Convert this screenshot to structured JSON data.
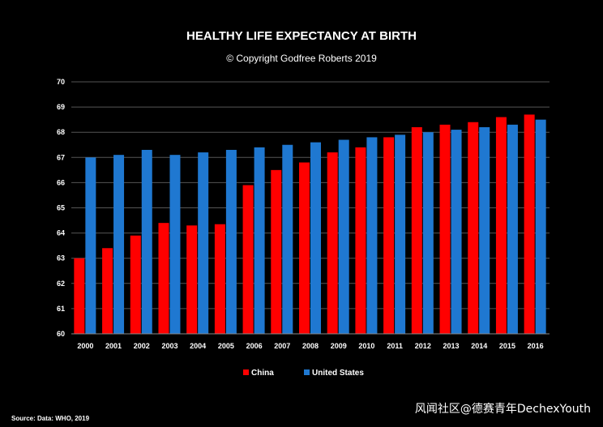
{
  "chart_data": {
    "type": "bar",
    "title": "HEALTHY LIFE EXPECTANCY AT BIRTH",
    "subtitle": "© Copyright Godfree Roberts 2019",
    "categories": [
      "2000",
      "2001",
      "2002",
      "2003",
      "2004",
      "2005",
      "2006",
      "2007",
      "2008",
      "2009",
      "2010",
      "2011",
      "2012",
      "2013",
      "2014",
      "2015",
      "2016"
    ],
    "series": [
      {
        "name": "China",
        "color": "#ff0000",
        "values": [
          63.0,
          63.4,
          63.9,
          64.4,
          64.3,
          64.35,
          65.9,
          66.5,
          66.8,
          67.2,
          67.4,
          67.8,
          68.2,
          68.3,
          68.4,
          68.6,
          68.7
        ]
      },
      {
        "name": "United States",
        "color": "#1f78d1",
        "values": [
          67.0,
          67.1,
          67.3,
          67.1,
          67.2,
          67.3,
          67.4,
          67.5,
          67.6,
          67.7,
          67.8,
          67.9,
          68.0,
          68.1,
          68.2,
          68.3,
          68.5
        ]
      }
    ],
    "ylim": [
      60,
      70
    ],
    "yticks": [
      60,
      61,
      62,
      63,
      64,
      65,
      66,
      67,
      68,
      69,
      70
    ],
    "xlabel": "",
    "ylabel": "",
    "grid": true,
    "legend_position": "bottom-center",
    "source": "Source: Data: WHO, 2019"
  },
  "watermark": "风闻社区@德赛青年DechexYouth"
}
